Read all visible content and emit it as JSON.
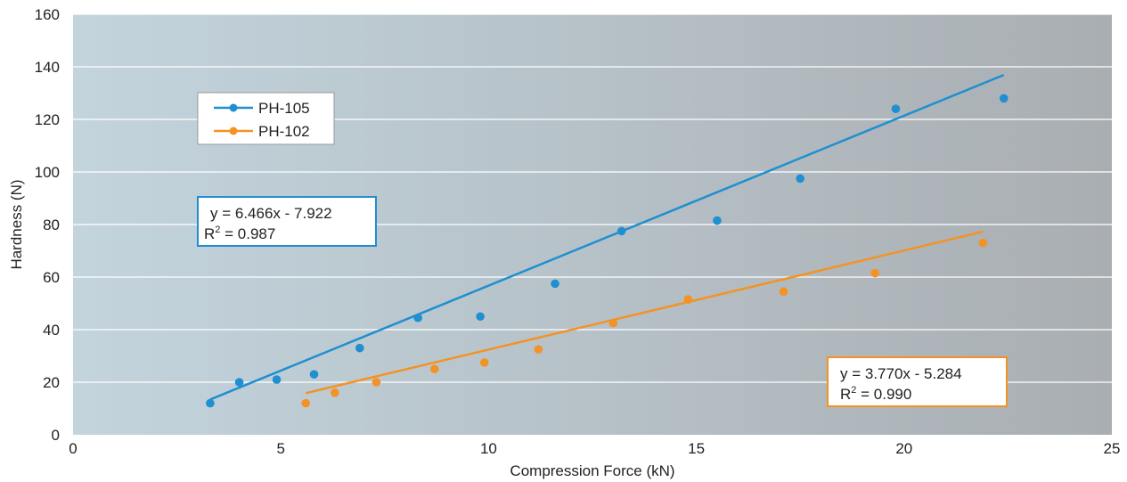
{
  "chart_data": {
    "type": "scatter",
    "title": "",
    "xlabel": "Compression Force (kN)",
    "ylabel": "Hardness (N)",
    "xlim": [
      0,
      25
    ],
    "ylim": [
      0,
      160
    ],
    "x_ticks": [
      "0",
      "5",
      "10",
      "15",
      "20",
      "25"
    ],
    "y_ticks": [
      "0",
      "20",
      "40",
      "60",
      "80",
      "100",
      "120",
      "140",
      "160"
    ],
    "grid": "horizontal",
    "legend_position": "top-left",
    "series": [
      {
        "name": "PH-105",
        "color": "#1f8fd0",
        "points": [
          [
            3.3,
            12
          ],
          [
            4.0,
            20
          ],
          [
            4.9,
            21
          ],
          [
            5.8,
            23
          ],
          [
            6.9,
            33
          ],
          [
            8.3,
            44.5
          ],
          [
            9.8,
            45
          ],
          [
            11.6,
            57.5
          ],
          [
            13.2,
            77.5
          ],
          [
            15.5,
            81.5
          ],
          [
            17.5,
            97.5
          ],
          [
            19.8,
            124
          ],
          [
            22.4,
            128
          ]
        ],
        "trendline": {
          "slope": 6.466,
          "intercept": -7.922,
          "x_range": [
            3.3,
            22.4
          ],
          "equation": "y = 6.466x - 7.922",
          "r2_label": "R",
          "r2_sup": "2",
          "r2_value": " = 0.987"
        }
      },
      {
        "name": "PH-102",
        "color": "#f39325",
        "points": [
          [
            5.6,
            12
          ],
          [
            6.3,
            16
          ],
          [
            7.3,
            20
          ],
          [
            8.7,
            25
          ],
          [
            9.9,
            27.5
          ],
          [
            11.2,
            32.5
          ],
          [
            13.0,
            42.5
          ],
          [
            14.8,
            51.5
          ],
          [
            17.1,
            54.5
          ],
          [
            19.3,
            61.5
          ],
          [
            21.9,
            73
          ]
        ],
        "trendline": {
          "slope": 3.77,
          "intercept": -5.284,
          "x_range": [
            5.6,
            21.9
          ],
          "equation": "y = 3.770x - 5.284",
          "r2_label": "R",
          "r2_sup": "2",
          "r2_value": " = 0.990"
        }
      }
    ]
  }
}
